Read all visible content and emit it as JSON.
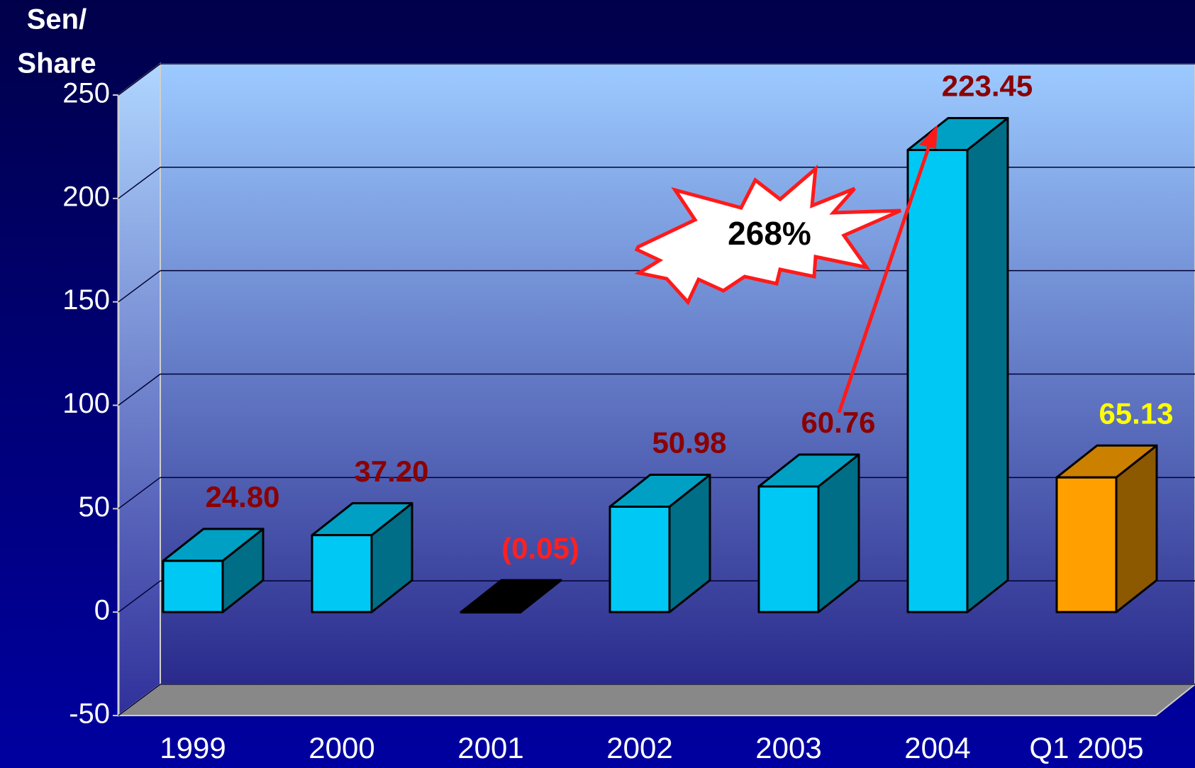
{
  "chart_data": {
    "type": "bar3d",
    "y_label_lines": [
      "Sen/",
      "Share"
    ],
    "categories": [
      "1999",
      "2000",
      "2001",
      "2002",
      "2003",
      "2004",
      "Q1 2005"
    ],
    "values": [
      24.8,
      37.2,
      -0.05,
      50.98,
      60.76,
      223.45,
      65.13
    ],
    "value_labels": [
      "24.80",
      "37.20",
      "(0.05)",
      "50.98",
      "60.76",
      "223.45",
      "65.13"
    ],
    "colors": [
      "#00c8f5",
      "#00c8f5",
      "#000000",
      "#00c8f5",
      "#00c8f5",
      "#00c8f5",
      "#ffa000"
    ],
    "label_colors": [
      "#8b0000",
      "#8b0000",
      "#ff2020",
      "#8b0000",
      "#8b0000",
      "#8b0000",
      "#ffff00"
    ],
    "ylim": [
      -50,
      250
    ],
    "yticks": [
      -50,
      0,
      50,
      100,
      150,
      200,
      250
    ],
    "grid": true,
    "annotation": "268%"
  }
}
